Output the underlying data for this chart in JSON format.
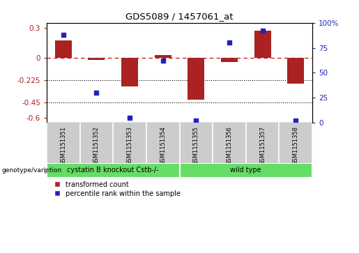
{
  "title": "GDS5089 / 1457061_at",
  "samples": [
    "GSM1151351",
    "GSM1151352",
    "GSM1151353",
    "GSM1151354",
    "GSM1151355",
    "GSM1151356",
    "GSM1151357",
    "GSM1151358"
  ],
  "transformed_count": [
    0.17,
    -0.02,
    -0.29,
    0.03,
    -0.42,
    -0.04,
    0.27,
    -0.26
  ],
  "percentile_rank": [
    88,
    30,
    5,
    62,
    2,
    80,
    92,
    2
  ],
  "group1_label": "cystatin B knockout Cstb-/-",
  "group1_count": 4,
  "group2_label": "wild type",
  "group2_count": 4,
  "genotype_label": "genotype/variation",
  "bar_color": "#aa2222",
  "dot_color": "#2222bb",
  "zero_line_color": "#cc2222",
  "yticks_left": [
    0.3,
    0.0,
    -0.225,
    -0.45,
    -0.6
  ],
  "yticks_right": [
    100,
    75,
    50,
    25,
    0
  ],
  "hline_dotted": [
    -0.225,
    -0.45
  ],
  "ylim": [
    -0.65,
    0.35
  ],
  "y2lim": [
    0,
    100
  ],
  "legend_tc": "transformed count",
  "legend_pr": "percentile rank within the sample",
  "group1_color": "#66dd66",
  "group2_color": "#66dd66",
  "background_color": "#ffffff",
  "plot_bg": "#ffffff",
  "sample_label_bg": "#cccccc",
  "bar_width": 0.5
}
